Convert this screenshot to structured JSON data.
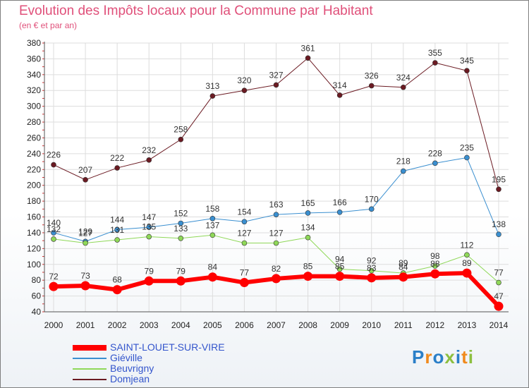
{
  "header": {
    "title": "Evolution des Impôts locaux pour la Commune par Habitant",
    "subtitle": "(en € et par an)"
  },
  "logo": {
    "text": "Proxiti"
  },
  "chart_data": {
    "type": "line",
    "x": [
      "2000",
      "2001",
      "2002",
      "2003",
      "2004",
      "2005",
      "2006",
      "2007",
      "2008",
      "2009",
      "2010",
      "2011",
      "2012",
      "2013",
      "2014"
    ],
    "ylim": [
      40,
      380
    ],
    "yticks": [
      40,
      60,
      80,
      100,
      120,
      140,
      160,
      180,
      200,
      220,
      240,
      260,
      280,
      300,
      320,
      340,
      360,
      380
    ],
    "grid": true,
    "legend_position": "bottom-left",
    "series": [
      {
        "name": "Domjean",
        "color": "#6b1a22",
        "line_width": 1,
        "values": [
          226,
          207,
          222,
          232,
          258,
          313,
          320,
          327,
          361,
          314,
          326,
          324,
          355,
          345,
          195
        ]
      },
      {
        "name": "Giéville",
        "color": "#3a8fd0",
        "line_width": 1,
        "values": [
          140,
          129,
          144,
          147,
          152,
          158,
          154,
          163,
          165,
          166,
          170,
          218,
          228,
          235,
          138
        ]
      },
      {
        "name": "Beuvrigny",
        "color": "#8fd858",
        "line_width": 1,
        "values": [
          132,
          127,
          131,
          135,
          133,
          137,
          127,
          127,
          134,
          94,
          92,
          89,
          98,
          112,
          77
        ]
      },
      {
        "name": "SAINT-LOUET-SUR-VIRE",
        "color": "#ff0000",
        "line_width": 6,
        "values": [
          72,
          73,
          68,
          79,
          79,
          84,
          77,
          82,
          85,
          85,
          83,
          84,
          88,
          89,
          47
        ]
      }
    ]
  }
}
